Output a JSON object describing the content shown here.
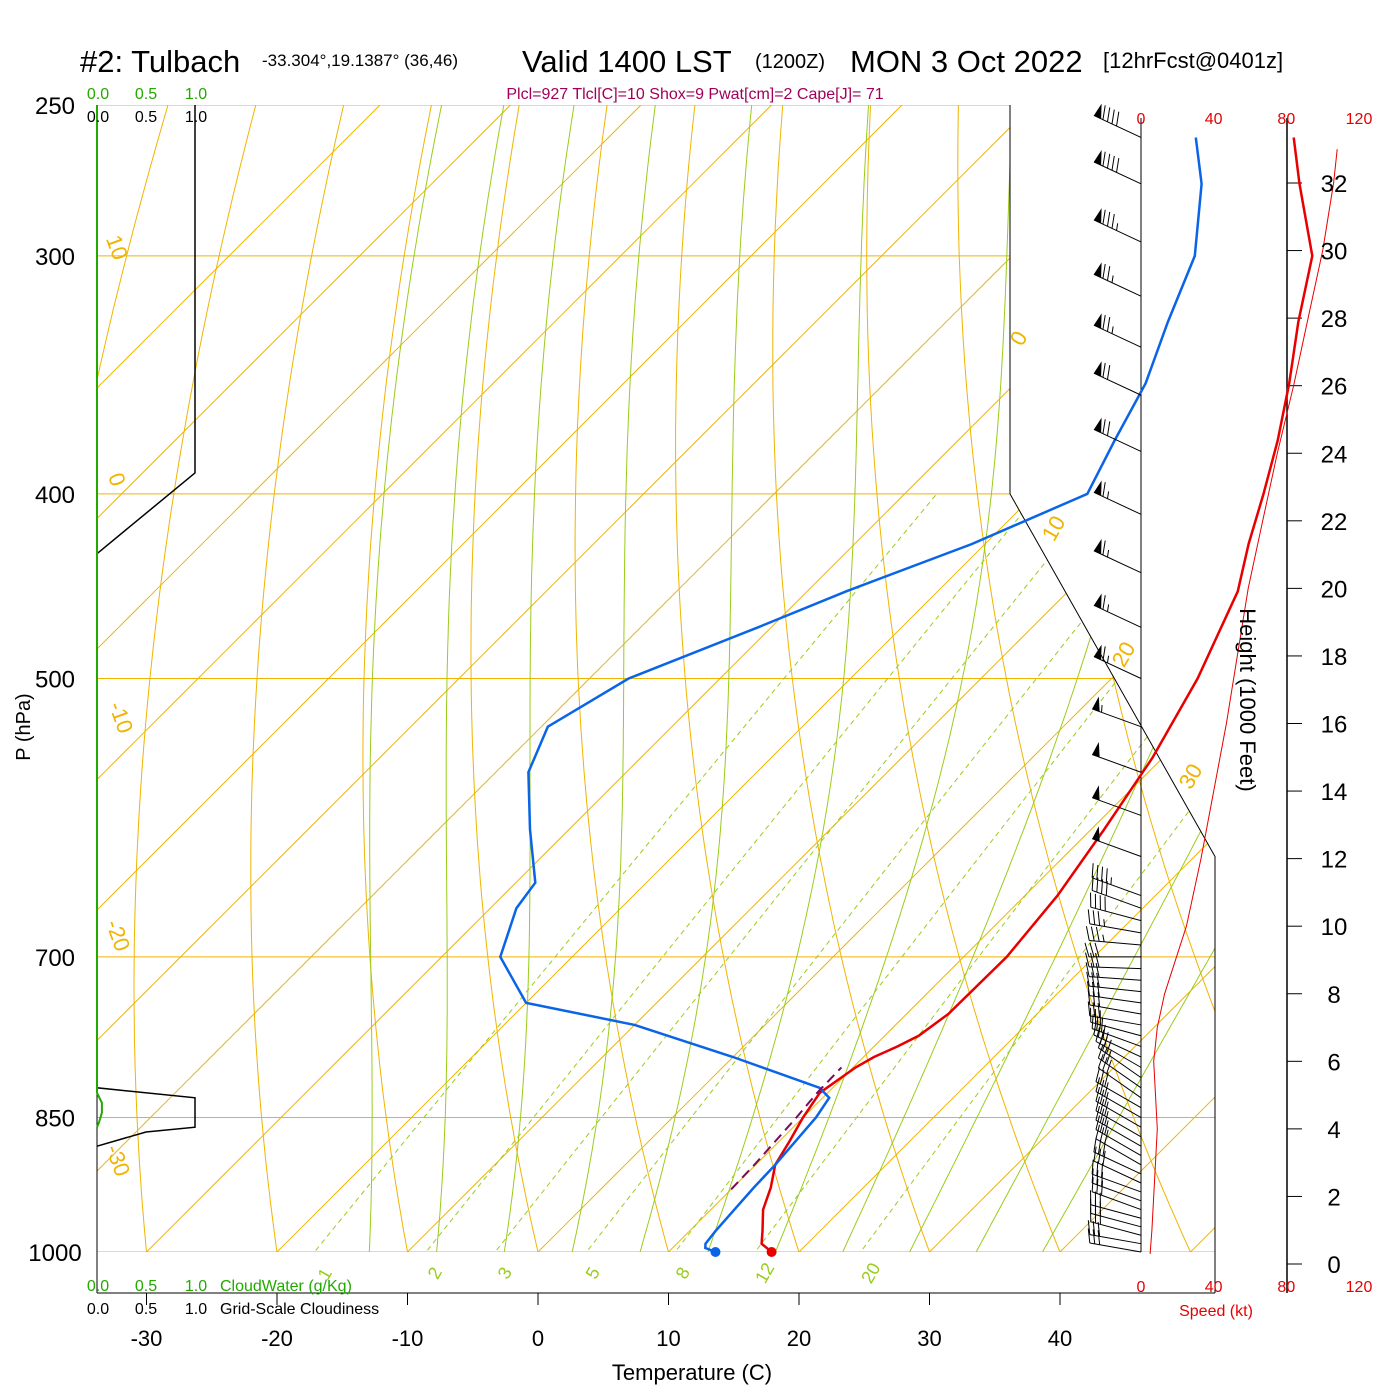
{
  "header": {
    "station": "#2: Tulbach",
    "coords": "-33.304°,19.1387° (36,46)",
    "valid": "Valid 1400 LST",
    "zulu": "(1200Z)",
    "date": "MON 3 Oct 2022",
    "forecast": "[12hrFcst@0401z]",
    "indices": "Plcl=927 Tlcl[C]=10 Shox=9 Pwat[cm]=2 Cape[J]= 71"
  },
  "colors": {
    "temperature": "#e80000",
    "dewpoint": "#0a64e8",
    "parcel": "#7a0a5a",
    "isobar_isotherm": "#f0b400",
    "mixing_ratio": "#9acc1a",
    "moist_adiabat": "#9acc1a",
    "cloudwater": "#22aa00",
    "speed": "#e80000",
    "indices_text": "#a0005a"
  },
  "labels": {
    "x_axis_title": "Temperature (C)",
    "y_axis_title": "P (hPa)",
    "height_axis_title": "Height (1000 Feet)",
    "cloudwater_title": "CloudWater (g/Kg)",
    "cloudiness_title": "Grid-Scale Cloudiness",
    "speed_title": "Speed (kt)"
  },
  "chart_data": {
    "type": "line",
    "x_ticks": [
      "-30",
      "-20",
      "-10",
      "0",
      "10",
      "20",
      "30",
      "40"
    ],
    "pressure_ticks": [
      "250",
      "300",
      "400",
      "500",
      "700",
      "850",
      "1000"
    ],
    "height_ticks": [
      "0",
      "2",
      "4",
      "6",
      "8",
      "10",
      "12",
      "14",
      "16",
      "18",
      "20",
      "22",
      "24",
      "26",
      "28",
      "30",
      "32"
    ],
    "speed_ticks": [
      "0",
      "40",
      "80",
      "120"
    ],
    "cloud_ticks": [
      "0.0",
      "0.5",
      "1.0"
    ],
    "dry_adiabat_labels": [
      "10",
      "0",
      "-10",
      "-20",
      "-30",
      "0",
      "10",
      "20",
      "30"
    ],
    "mixing_ratio_labels": [
      "1",
      "2",
      "3",
      "5",
      "8",
      "12",
      "20"
    ],
    "series": [
      {
        "key": "temperature",
        "p": [
          1000,
          990,
          975,
          950,
          925,
          900,
          875,
          850,
          825,
          800,
          790,
          780,
          770,
          750,
          700,
          650,
          600,
          550,
          500,
          450,
          425,
          400,
          375,
          350,
          325,
          300,
          275,
          260
        ],
        "t": [
          17.9,
          16.5,
          15.6,
          14.0,
          12.9,
          11.5,
          10.8,
          10.0,
          9.4,
          10.2,
          10.8,
          11.8,
          12.6,
          13.2,
          13.3,
          12.5,
          11.0,
          9.2,
          6.6,
          3.0,
          0.2,
          -2.5,
          -5.5,
          -9.0,
          -13.0,
          -17.0,
          -23.5,
          -27.5
        ]
      },
      {
        "key": "dewpoint",
        "p": [
          1000,
          995,
          990,
          975,
          950,
          925,
          900,
          850,
          830,
          820,
          790,
          760,
          740,
          700,
          660,
          640,
          600,
          560,
          530,
          500,
          470,
          450,
          425,
          400,
          375,
          350,
          325,
          300,
          275,
          260
        ],
        "t": [
          13.6,
          12.5,
          12.2,
          12.0,
          11.8,
          11.6,
          11.5,
          11.0,
          10.5,
          9.0,
          0.0,
          -10.0,
          -20.0,
          -25.5,
          -28.0,
          -28.5,
          -33.0,
          -37.5,
          -39.5,
          -37.0,
          -31.0,
          -27.0,
          -21.0,
          -16.0,
          -18.0,
          -20.0,
          -23.0,
          -26.0,
          -31.0,
          -35.0
        ]
      },
      {
        "key": "parcel",
        "p": [
          927,
          900,
          875,
          850,
          825,
          800
        ],
        "t": [
          10.0,
          9.9,
          9.7,
          9.5,
          9.2,
          9.1
        ]
      }
    ],
    "surface_markers": {
      "temperature_p": 1000,
      "temperature_t": 17.9,
      "dewpoint_p": 1000,
      "dewpoint_t": 13.6
    },
    "speed_profile": {
      "h_kft": [
        0.3,
        1,
        2,
        3,
        4,
        5,
        6,
        6.5,
        7,
        8,
        10,
        12,
        14,
        16,
        18,
        20,
        22,
        24,
        26,
        28,
        30,
        32,
        33
      ],
      "kt": [
        5,
        6,
        7,
        8,
        9,
        8,
        7,
        8,
        9,
        13,
        25,
        33,
        40,
        47,
        53,
        59,
        67,
        75,
        84,
        92,
        100,
        106,
        108
      ]
    },
    "wind_barbs": [
      {
        "p": 1000,
        "dir": 280,
        "spd": 30
      },
      {
        "p": 990,
        "dir": 280,
        "spd": 30
      },
      {
        "p": 980,
        "dir": 285,
        "spd": 30
      },
      {
        "p": 970,
        "dir": 285,
        "spd": 30
      },
      {
        "p": 960,
        "dir": 285,
        "spd": 30
      },
      {
        "p": 950,
        "dir": 290,
        "spd": 30
      },
      {
        "p": 940,
        "dir": 290,
        "spd": 30
      },
      {
        "p": 930,
        "dir": 290,
        "spd": 30
      },
      {
        "p": 920,
        "dir": 295,
        "spd": 30
      },
      {
        "p": 910,
        "dir": 295,
        "spd": 30
      },
      {
        "p": 900,
        "dir": 300,
        "spd": 30
      },
      {
        "p": 890,
        "dir": 300,
        "spd": 30
      },
      {
        "p": 880,
        "dir": 300,
        "spd": 30
      },
      {
        "p": 870,
        "dir": 300,
        "spd": 30
      },
      {
        "p": 860,
        "dir": 300,
        "spd": 30
      },
      {
        "p": 850,
        "dir": 300,
        "spd": 30
      },
      {
        "p": 840,
        "dir": 300,
        "spd": 30
      },
      {
        "p": 830,
        "dir": 305,
        "spd": 30
      },
      {
        "p": 820,
        "dir": 305,
        "spd": 30
      },
      {
        "p": 810,
        "dir": 305,
        "spd": 30
      },
      {
        "p": 800,
        "dir": 300,
        "spd": 30
      },
      {
        "p": 790,
        "dir": 295,
        "spd": 30
      },
      {
        "p": 780,
        "dir": 290,
        "spd": 30
      },
      {
        "p": 770,
        "dir": 285,
        "spd": 30
      },
      {
        "p": 760,
        "dir": 280,
        "spd": 30
      },
      {
        "p": 750,
        "dir": 280,
        "spd": 30
      },
      {
        "p": 740,
        "dir": 278,
        "spd": 30
      },
      {
        "p": 730,
        "dir": 276,
        "spd": 30
      },
      {
        "p": 720,
        "dir": 274,
        "spd": 30
      },
      {
        "p": 710,
        "dir": 272,
        "spd": 30
      },
      {
        "p": 700,
        "dir": 270,
        "spd": 30
      },
      {
        "p": 690,
        "dir": 275,
        "spd": 35
      },
      {
        "p": 680,
        "dir": 280,
        "spd": 35
      },
      {
        "p": 670,
        "dir": 285,
        "spd": 40
      },
      {
        "p": 660,
        "dir": 290,
        "spd": 40
      },
      {
        "p": 650,
        "dir": 290,
        "spd": 45
      },
      {
        "p": 620,
        "dir": 290,
        "spd": 50
      },
      {
        "p": 590,
        "dir": 290,
        "spd": 50
      },
      {
        "p": 560,
        "dir": 290,
        "spd": 50
      },
      {
        "p": 530,
        "dir": 290,
        "spd": 55
      },
      {
        "p": 500,
        "dir": 295,
        "spd": 65
      },
      {
        "p": 470,
        "dir": 295,
        "spd": 65
      },
      {
        "p": 440,
        "dir": 295,
        "spd": 65
      },
      {
        "p": 410,
        "dir": 295,
        "spd": 65
      },
      {
        "p": 380,
        "dir": 295,
        "spd": 70
      },
      {
        "p": 355,
        "dir": 295,
        "spd": 70
      },
      {
        "p": 335,
        "dir": 295,
        "spd": 75
      },
      {
        "p": 315,
        "dir": 295,
        "spd": 75
      },
      {
        "p": 295,
        "dir": 295,
        "spd": 85
      },
      {
        "p": 275,
        "dir": 295,
        "spd": 90
      },
      {
        "p": 260,
        "dir": 295,
        "spd": 90
      }
    ],
    "cloudiness_profile": {
      "p": [
        250,
        390,
        430,
        820,
        830,
        845,
        860,
        865,
        880
      ],
      "frac": [
        1.0,
        1.0,
        0.0,
        0.0,
        1.0,
        1.0,
        1.0,
        0.5,
        0.0
      ]
    },
    "cloudwater_profile": {
      "p": [
        250,
        825,
        835,
        845,
        855,
        860
      ],
      "val": [
        0.0,
        0.0,
        0.05,
        0.05,
        0.02,
        0.0
      ]
    }
  }
}
